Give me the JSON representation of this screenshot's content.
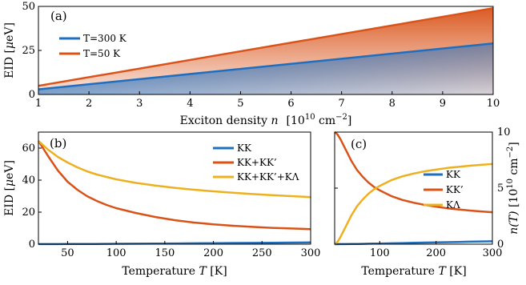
{
  "chart_data": [
    {
      "type": "area",
      "panel_label": "(a)",
      "xlabel": "Exciton density n  [10^10 cm^-2]",
      "xlabel_parts": {
        "main": "Exciton density ",
        "var": "n",
        "unit_open": "[10",
        "unit_exp": "10",
        "unit_mid": " cm",
        "unit_exp2": "−2",
        "unit_close": "]"
      },
      "ylabel": "EID [μeV]",
      "xlim": [
        1,
        10
      ],
      "ylim": [
        0,
        50
      ],
      "xticks": [
        1,
        2,
        3,
        4,
        5,
        6,
        7,
        8,
        9,
        10
      ],
      "yticks": [
        0,
        25,
        50
      ],
      "legend_position": "top-left",
      "series": [
        {
          "name": "T=300 K",
          "color": "#1f6fc1",
          "x": [
            1,
            10
          ],
          "y": [
            2.9,
            29
          ]
        },
        {
          "name": "T=50 K",
          "color": "#d95319",
          "x": [
            1,
            10
          ],
          "y": [
            4.9,
            49
          ]
        }
      ]
    },
    {
      "type": "line",
      "panel_label": "(b)",
      "xlabel": "Temperature T [K]",
      "xlabel_parts": {
        "main": "Temperature ",
        "var": "T",
        "unit": " [K]"
      },
      "ylabel": "EID [μeV]",
      "xlim": [
        20,
        300
      ],
      "ylim": [
        0,
        70
      ],
      "xticks": [
        50,
        100,
        150,
        200,
        250,
        300
      ],
      "yticks": [
        0,
        20,
        40,
        60
      ],
      "legend_position": "top-right",
      "x": [
        20,
        30,
        40,
        50,
        60,
        70,
        80,
        90,
        100,
        120,
        140,
        160,
        180,
        200,
        220,
        240,
        260,
        280,
        300
      ],
      "series": [
        {
          "name": "KK",
          "color": "#1f6fc1",
          "values": [
            0.05,
            0.06,
            0.07,
            0.09,
            0.11,
            0.14,
            0.17,
            0.2,
            0.23,
            0.3,
            0.38,
            0.46,
            0.55,
            0.64,
            0.73,
            0.82,
            0.91,
            1.0,
            1.1
          ]
        },
        {
          "name": "KK+KK’",
          "color": "#d95319",
          "values": [
            64.5,
            55,
            46,
            39,
            34,
            30,
            27,
            24.5,
            22.5,
            19.5,
            17,
            15,
            13.5,
            12.4,
            11.5,
            10.8,
            10.2,
            9.8,
            9.4
          ]
        },
        {
          "name": "KK+KK’+KΛ",
          "color": "#edb120",
          "values": [
            64.5,
            59,
            54.5,
            51,
            48,
            45.5,
            43.5,
            42,
            40.5,
            38.3,
            36.6,
            35.2,
            34,
            33,
            32.1,
            31.3,
            30.6,
            30,
            29.4
          ]
        }
      ]
    },
    {
      "type": "line",
      "panel_label": "(c)",
      "xlabel": "Temperature T [K]",
      "xlabel_parts": {
        "main": "Temperature ",
        "var": "T",
        "unit": " [K]"
      },
      "ylabel": "n(T) [10^10 cm^-2]",
      "ylabel_parts": {
        "var": "n(T)",
        "unit_open": " [10",
        "unit_exp": "10",
        "unit_mid": " cm",
        "unit_exp2": "−2",
        "unit_close": "]"
      },
      "xlim": [
        20,
        300
      ],
      "ylim": [
        0,
        10
      ],
      "xticks": [
        100,
        200,
        300
      ],
      "yticks": [
        0,
        5,
        10
      ],
      "legend_position": "right",
      "x": [
        20,
        25,
        30,
        40,
        50,
        60,
        70,
        80,
        90,
        100,
        120,
        140,
        160,
        180,
        200,
        220,
        240,
        260,
        280,
        300
      ],
      "series": [
        {
          "name": "KK",
          "color": "#1f6fc1",
          "values": [
            0.0,
            0.0,
            0.01,
            0.01,
            0.02,
            0.02,
            0.03,
            0.04,
            0.05,
            0.06,
            0.08,
            0.1,
            0.12,
            0.14,
            0.16,
            0.18,
            0.2,
            0.22,
            0.24,
            0.26
          ]
        },
        {
          "name": "KK’",
          "color": "#d95319",
          "values": [
            10.0,
            9.8,
            9.4,
            8.4,
            7.4,
            6.6,
            6.0,
            5.5,
            5.1,
            4.8,
            4.3,
            3.95,
            3.7,
            3.5,
            3.35,
            3.2,
            3.1,
            3.0,
            2.92,
            2.85
          ]
        },
        {
          "name": "KΛ",
          "color": "#edb120",
          "values": [
            0.0,
            0.2,
            0.6,
            1.6,
            2.6,
            3.4,
            4.0,
            4.5,
            4.9,
            5.2,
            5.7,
            6.05,
            6.3,
            6.5,
            6.65,
            6.8,
            6.9,
            7.0,
            7.08,
            7.15
          ]
        }
      ]
    }
  ]
}
